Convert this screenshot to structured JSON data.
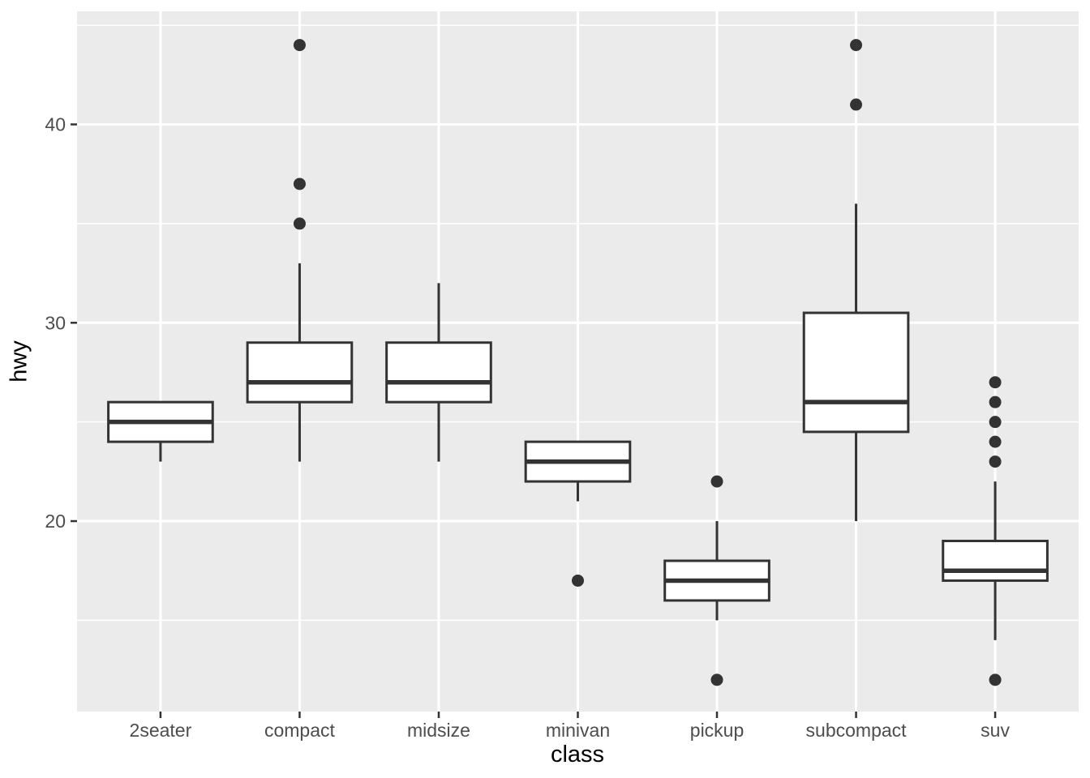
{
  "chart_data": {
    "type": "boxplot",
    "title": "",
    "xlabel": "class",
    "ylabel": "hwy",
    "categories": [
      "2seater",
      "compact",
      "midsize",
      "minivan",
      "pickup",
      "subcompact",
      "suv"
    ],
    "y_ticks": [
      20,
      30,
      40
    ],
    "y_minor_ticks": [
      15,
      25,
      35,
      45
    ],
    "ylim": [
      10.4,
      45.7
    ],
    "grid": true,
    "legend_position": "none",
    "series": [
      {
        "category": "2seater",
        "whisker_low": 23,
        "q1": 24,
        "median": 25,
        "q3": 26,
        "whisker_high": 26,
        "outliers": []
      },
      {
        "category": "compact",
        "whisker_low": 23,
        "q1": 26,
        "median": 27,
        "q3": 29,
        "whisker_high": 33,
        "outliers": [
          35,
          37,
          44
        ]
      },
      {
        "category": "midsize",
        "whisker_low": 23,
        "q1": 26,
        "median": 27,
        "q3": 29,
        "whisker_high": 32,
        "outliers": []
      },
      {
        "category": "minivan",
        "whisker_low": 21,
        "q1": 22,
        "median": 23,
        "q3": 24,
        "whisker_high": 24,
        "outliers": [
          17
        ]
      },
      {
        "category": "pickup",
        "whisker_low": 15,
        "q1": 16,
        "median": 17,
        "q3": 18,
        "whisker_high": 20,
        "outliers": [
          22,
          12
        ]
      },
      {
        "category": "subcompact",
        "whisker_low": 20,
        "q1": 24.5,
        "median": 26,
        "q3": 30.5,
        "whisker_high": 36,
        "outliers": [
          44,
          41
        ]
      },
      {
        "category": "suv",
        "whisker_low": 14,
        "q1": 17,
        "median": 17.5,
        "q3": 19,
        "whisker_high": 22,
        "outliers": [
          27,
          26,
          25,
          24,
          23,
          12
        ]
      }
    ],
    "colors": {
      "panel_bg": "#EBEBEB",
      "grid": "#FFFFFF",
      "box_stroke": "#333333",
      "box_fill": "#FFFFFF",
      "outlier": "#333333",
      "tick_mark": "#333333",
      "tick_label": "#4D4D4D",
      "axis_title": "#000000",
      "figure_bg": "#FFFFFF"
    }
  }
}
